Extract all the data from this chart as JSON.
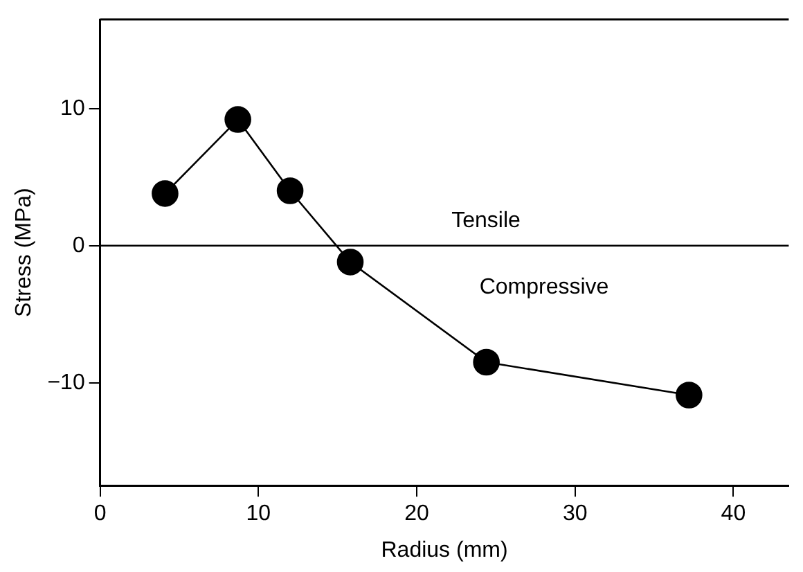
{
  "chart_data": {
    "type": "line",
    "xlabel": "Radius (mm)",
    "ylabel": "Stress (MPa)",
    "x": [
      4.1,
      8.7,
      12.0,
      15.8,
      24.4,
      37.2
    ],
    "series": [
      {
        "color": "#000000",
        "values": [
          3.8,
          9.2,
          4.0,
          -1.2,
          -8.5,
          -10.9
        ]
      }
    ],
    "xlim": [
      0,
      43.5
    ],
    "xticks": [
      0,
      10,
      20,
      30,
      40
    ],
    "ylim": [
      -17.5,
      16.5
    ],
    "yticks": [
      -10,
      0,
      10
    ],
    "marker": "circle",
    "line_style": "solid",
    "legend": false,
    "ref_lines": [
      {
        "axis": "y",
        "value": 0
      }
    ],
    "annotations": [
      "Tensile",
      "Compressive"
    ]
  }
}
